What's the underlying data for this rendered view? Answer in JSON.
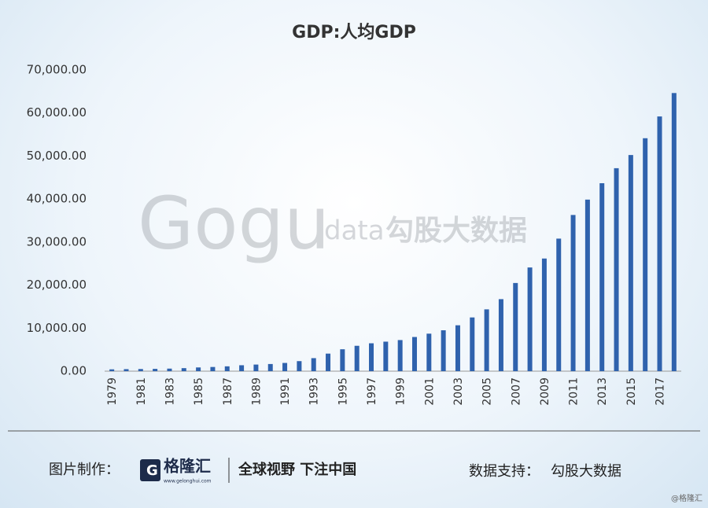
{
  "chart_data": {
    "type": "bar",
    "title": "GDP:人均GDP",
    "categories": [
      "1979",
      null,
      "1981",
      null,
      "1983",
      null,
      "1985",
      null,
      "1987",
      null,
      "1989",
      null,
      "1991",
      null,
      "1993",
      null,
      "1995",
      null,
      "1997",
      null,
      "1999",
      null,
      "2001",
      null,
      "2003",
      null,
      "2005",
      null,
      "2007",
      null,
      "2009",
      null,
      "2011",
      null,
      "2013",
      null,
      "2015",
      null,
      "2017",
      null
    ],
    "values": [
      423,
      468,
      497,
      533,
      592,
      701,
      866,
      973,
      1123,
      1378,
      1536,
      1663,
      1912,
      2334,
      3027,
      4081,
      5091,
      5898,
      6481,
      6860,
      7229,
      7942,
      8717,
      9506,
      10666,
      12487,
      14368,
      16738,
      20494,
      24100,
      26180,
      30808,
      36302,
      39874,
      43684,
      47173,
      50237,
      54139,
      59201,
      64644
    ],
    "color": "#2f62ad",
    "ylim": [
      0,
      70000
    ],
    "yticks": [
      {
        "value": 0,
        "label": "0.00"
      },
      {
        "value": 10000,
        "label": "10,000.00"
      },
      {
        "value": 20000,
        "label": "20,000.00"
      },
      {
        "value": 30000,
        "label": "30,000.00"
      },
      {
        "value": 40000,
        "label": "40,000.00"
      },
      {
        "value": 50000,
        "label": "50,000.00"
      },
      {
        "value": 60000,
        "label": "60,000.00"
      },
      {
        "value": 70000,
        "label": "70,000.00"
      }
    ],
    "grid": false
  },
  "footer": {
    "made_by_label": "图片制作：",
    "logo_letter": "G",
    "logo_name": "格隆汇",
    "logo_url": "www.gelonghui.com",
    "slogan": "全球视野 下注中国",
    "source_label": "数据支持：",
    "source_name": "勾股大数据"
  },
  "watermark": {
    "logo": "Gogu",
    "data": "data",
    "name": "勾股大数据",
    "corner": "@格隆汇"
  }
}
